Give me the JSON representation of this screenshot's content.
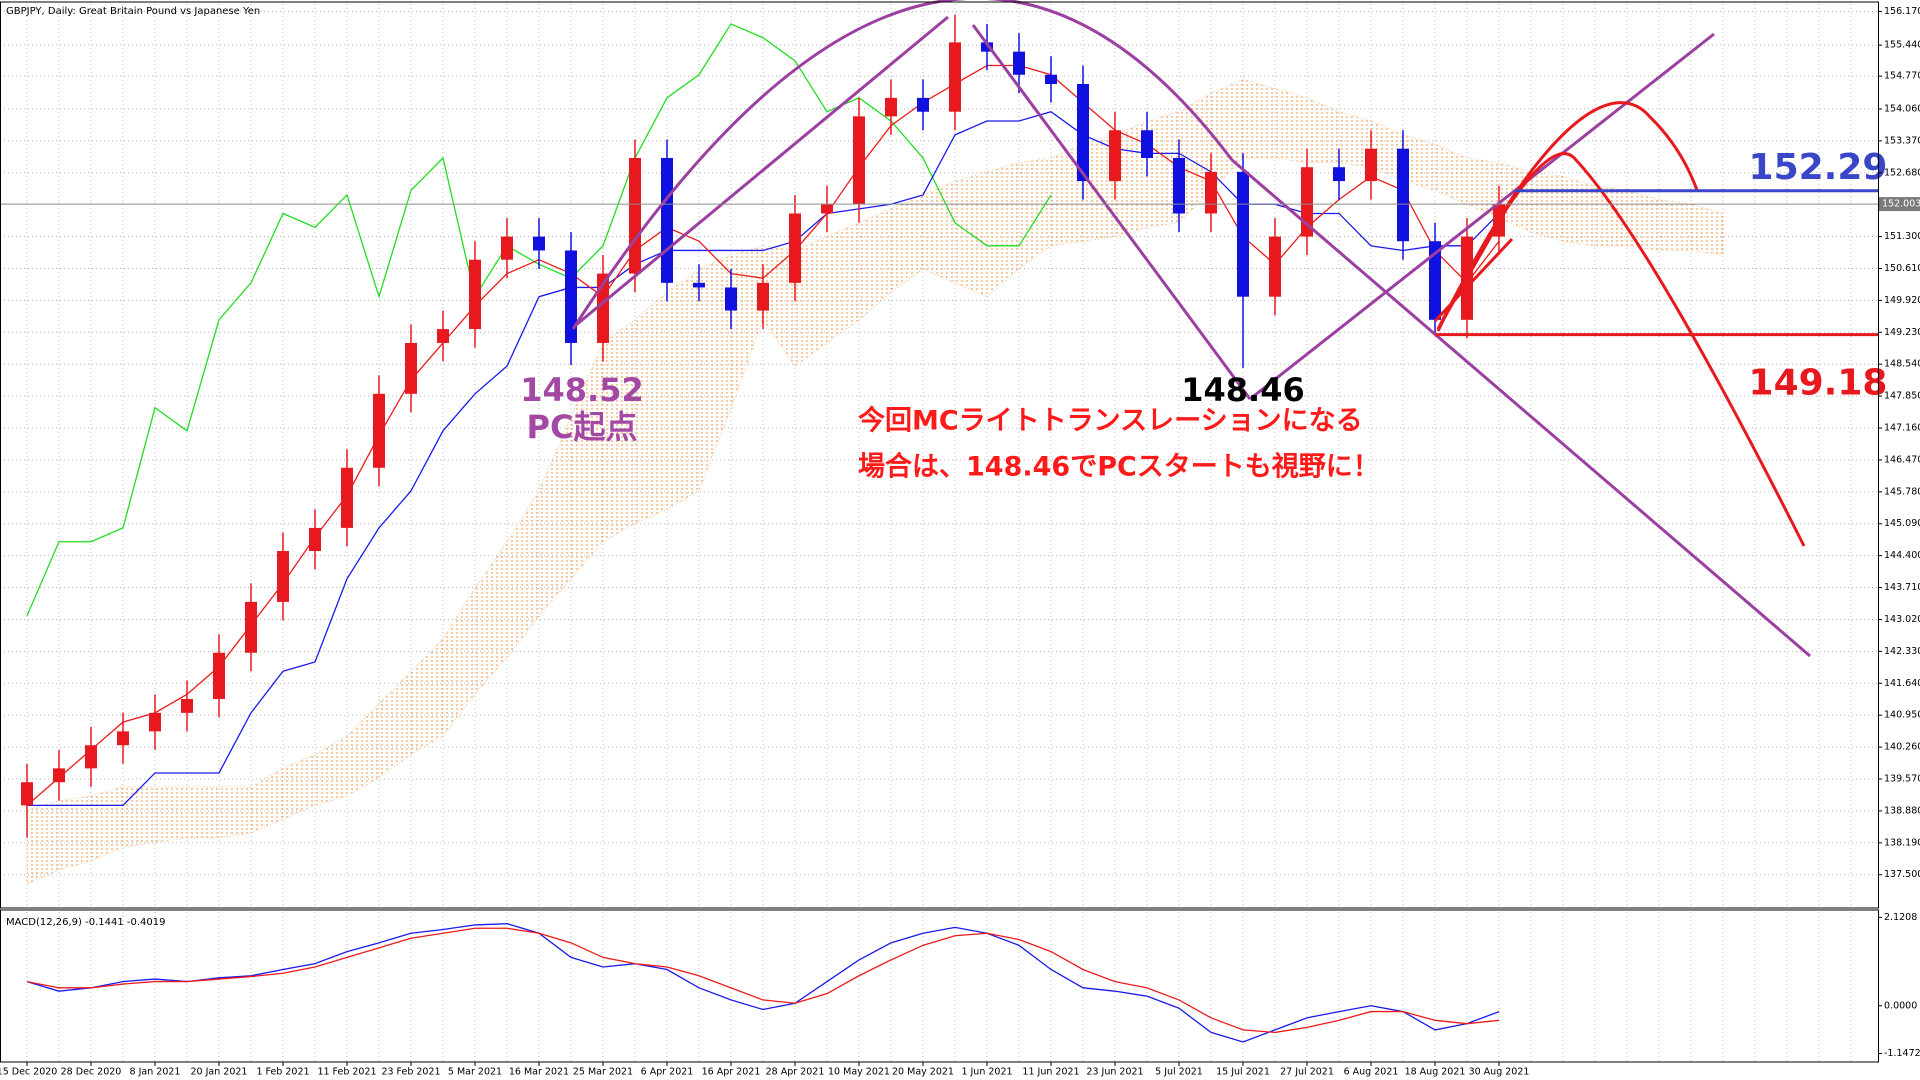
{
  "chart_data": [
    {
      "type": "candlestick",
      "title": "GBPJPY, Daily:  Great Britain Pound vs Japanese Yen",
      "categories": [
        "15 Dec 2020",
        null,
        "28 Dec 2020",
        null,
        "8 Jan 2021",
        null,
        "20 Jan 2021",
        null,
        "1 Feb 2021",
        null,
        "11 Feb 2021",
        null,
        "23 Feb 2021",
        null,
        "5 Mar 2021",
        null,
        "16 Mar 2021",
        null,
        "25 Mar 2021",
        null,
        "6 Apr 2021",
        null,
        "16 Apr 2021",
        null,
        "28 Apr 2021",
        null,
        "10 May 2021",
        null,
        "20 May 2021",
        null,
        "1 Jun 2021",
        null,
        "11 Jun 2021",
        null,
        "23 Jun 2021",
        null,
        "5 Jul 2021",
        null,
        "15 Jul 2021",
        null,
        "27 Jul 2021",
        null,
        "6 Aug 2021",
        null,
        "18 Aug 2021",
        null,
        "30 Aug 2021",
        null,
        null,
        null,
        null,
        null,
        null,
        null
      ],
      "open": [
        139.0,
        139.5,
        139.8,
        140.3,
        140.6,
        141.0,
        141.3,
        142.3,
        143.4,
        144.5,
        145.0,
        146.3,
        147.9,
        149.0,
        149.3,
        150.8,
        151.3,
        151.0,
        149.0,
        150.5,
        153.0,
        150.3,
        150.2,
        149.7,
        150.3,
        151.8,
        152.0,
        153.9,
        154.3,
        154.0,
        155.5,
        155.3,
        154.8,
        154.6,
        152.5,
        153.6,
        153.0,
        151.8,
        152.7,
        150.0,
        151.3,
        152.8,
        152.5,
        153.2,
        151.2,
        149.5,
        151.3,
        null,
        null,
        null,
        null,
        null,
        null,
        null
      ],
      "high": [
        139.9,
        140.2,
        140.7,
        141.0,
        141.4,
        141.7,
        142.7,
        143.8,
        144.9,
        145.4,
        146.7,
        148.3,
        149.4,
        149.7,
        151.2,
        151.7,
        151.7,
        151.4,
        150.9,
        153.4,
        153.4,
        150.7,
        150.6,
        150.7,
        152.2,
        152.4,
        154.3,
        154.7,
        154.7,
        156.1,
        155.9,
        155.7,
        155.2,
        155.0,
        154.0,
        154.0,
        153.4,
        153.1,
        153.1,
        151.7,
        153.2,
        153.2,
        153.6,
        153.6,
        151.6,
        151.7,
        152.4,
        null,
        null,
        null,
        null,
        null,
        null,
        null
      ],
      "low": [
        138.3,
        139.1,
        139.4,
        139.9,
        140.2,
        140.6,
        140.9,
        141.9,
        143.0,
        144.1,
        144.6,
        145.9,
        147.5,
        148.6,
        148.9,
        150.4,
        150.6,
        148.52,
        148.6,
        150.1,
        149.9,
        149.9,
        149.3,
        149.3,
        149.9,
        151.4,
        151.6,
        153.5,
        153.6,
        153.6,
        154.9,
        154.4,
        154.2,
        152.1,
        152.1,
        152.6,
        151.4,
        151.4,
        148.46,
        149.6,
        150.9,
        152.1,
        152.1,
        150.8,
        149.18,
        149.1,
        150.9,
        null,
        null,
        null,
        null,
        null,
        null,
        null
      ],
      "close": [
        139.5,
        139.8,
        140.3,
        140.6,
        141.0,
        141.3,
        142.3,
        143.4,
        144.5,
        145.0,
        146.3,
        147.9,
        149.0,
        149.3,
        150.8,
        151.3,
        151.0,
        149.0,
        150.5,
        153.0,
        150.3,
        150.2,
        149.7,
        150.3,
        151.8,
        152.0,
        153.9,
        154.3,
        154.0,
        155.5,
        155.3,
        154.8,
        154.6,
        152.5,
        153.6,
        153.0,
        151.8,
        152.7,
        150.0,
        151.3,
        152.8,
        152.5,
        153.2,
        151.2,
        149.5,
        151.3,
        152.0,
        null,
        null,
        null,
        null,
        null,
        null,
        null
      ],
      "up_color": "#e8191e",
      "down_color": "#1010e0",
      "ylim": [
        136.78,
        156.33
      ],
      "yticks": [
        {
          "value": 156.17,
          "label": "156.170"
        },
        {
          "value": 155.44,
          "label": "155.440"
        },
        {
          "value": 154.77,
          "label": "154.770"
        },
        {
          "value": 154.06,
          "label": "154.060"
        },
        {
          "value": 153.37,
          "label": "153.370"
        },
        {
          "value": 152.68,
          "label": "152.680"
        },
        {
          "value": 151.3,
          "label": "151.300"
        },
        {
          "value": 150.61,
          "label": "150.610"
        },
        {
          "value": 149.92,
          "label": "149.920"
        },
        {
          "value": 149.23,
          "label": "149.230"
        },
        {
          "value": 148.54,
          "label": "148.540"
        },
        {
          "value": 147.85,
          "label": "147.850"
        },
        {
          "value": 147.16,
          "label": "147.160"
        },
        {
          "value": 146.47,
          "label": "146.470"
        },
        {
          "value": 145.78,
          "label": "145.780"
        },
        {
          "value": 145.09,
          "label": "145.090"
        },
        {
          "value": 144.4,
          "label": "144.400"
        },
        {
          "value": 143.71,
          "label": "143.710"
        },
        {
          "value": 143.02,
          "label": "143.020"
        },
        {
          "value": 142.33,
          "label": "142.330"
        },
        {
          "value": 141.64,
          "label": "141.640"
        },
        {
          "value": 140.95,
          "label": "140.950"
        },
        {
          "value": 140.26,
          "label": "140.260"
        },
        {
          "value": 139.57,
          "label": "139.570"
        },
        {
          "value": 138.88,
          "label": "138.880"
        },
        {
          "value": 138.19,
          "label": "138.190"
        },
        {
          "value": 137.5,
          "label": "137.500"
        }
      ],
      "grid": true,
      "current_price": {
        "value": 152.003,
        "label": "152.003"
      },
      "cloud": {
        "color": "#f4a460",
        "upper": [
          138.9,
          139.1,
          139.2,
          139.4,
          139.4,
          139.4,
          139.4,
          139.4,
          139.8,
          140.1,
          140.5,
          141.2,
          141.9,
          142.6,
          143.7,
          144.7,
          145.8,
          147.4,
          149.0,
          149.5,
          150.1,
          150.6,
          150.9,
          151.1,
          151.0,
          151.3,
          151.6,
          151.9,
          152.2,
          152.5,
          152.7,
          152.9,
          153.0,
          153.3,
          153.5,
          153.8,
          154.0,
          154.4,
          154.7,
          154.5,
          154.3,
          154.0,
          153.8,
          153.5,
          153.3,
          153.0,
          152.9,
          152.7,
          152.6,
          152.4,
          152.3,
          152.1,
          152.0,
          151.8
        ],
        "lower": [
          137.3,
          137.6,
          137.8,
          138.1,
          138.2,
          138.3,
          138.3,
          138.4,
          138.7,
          139.0,
          139.2,
          139.6,
          140.1,
          140.5,
          141.4,
          142.2,
          143.1,
          143.9,
          144.7,
          145.1,
          145.4,
          145.8,
          147.6,
          149.5,
          148.5,
          149.0,
          149.5,
          150.1,
          150.6,
          150.3,
          150.0,
          150.6,
          151.1,
          151.2,
          151.3,
          151.5,
          151.6,
          152.3,
          153.0,
          153.0,
          152.9,
          152.9,
          152.8,
          152.5,
          152.3,
          152.0,
          151.7,
          151.4,
          151.2,
          151.1,
          151.1,
          151.0,
          151.0,
          150.9
        ]
      },
      "overlays": [
        {
          "color": "#22dd22",
          "values": [
            143.1,
            144.7,
            144.7,
            145.0,
            147.6,
            147.1,
            149.5,
            150.3,
            151.8,
            151.5,
            152.2,
            150.0,
            152.3,
            153.0,
            150.0,
            151.1,
            150.7,
            150.4,
            151.1,
            153.0,
            154.3,
            154.8,
            155.9,
            155.6,
            155.1,
            154.0,
            154.3,
            153.8,
            153.0,
            151.6,
            151.1,
            151.1,
            152.2,
            null,
            null,
            null,
            null,
            null,
            null,
            null,
            null,
            null,
            null,
            null,
            null,
            null,
            null,
            null,
            null,
            null,
            null,
            null,
            null,
            null
          ]
        },
        {
          "color": "#1a1aee",
          "values": [
            139.0,
            139.0,
            139.0,
            139.0,
            139.7,
            139.7,
            139.7,
            141.0,
            141.9,
            142.1,
            143.9,
            145.0,
            145.8,
            147.1,
            147.9,
            148.5,
            150.0,
            150.2,
            150.2,
            150.7,
            151.0,
            151.0,
            151.0,
            151.0,
            151.2,
            151.8,
            151.9,
            152.0,
            152.2,
            153.5,
            153.8,
            153.8,
            154.0,
            153.5,
            153.2,
            153.1,
            153.1,
            152.7,
            152.0,
            152.0,
            151.8,
            151.8,
            151.1,
            151.0,
            151.1,
            151.1,
            151.8,
            null,
            null,
            null,
            null,
            null,
            null,
            null
          ]
        },
        {
          "color": "#ee1a1a",
          "values": [
            139.0,
            139.6,
            140.2,
            140.8,
            141.0,
            141.4,
            142.0,
            142.9,
            143.8,
            144.8,
            145.7,
            147.0,
            148.2,
            149.0,
            149.8,
            150.5,
            150.8,
            150.5,
            150.0,
            151.0,
            151.5,
            151.2,
            150.5,
            150.4,
            151.0,
            151.8,
            152.8,
            153.7,
            154.2,
            154.6,
            155.0,
            155.0,
            154.8,
            154.2,
            153.6,
            153.3,
            152.8,
            152.5,
            151.3,
            150.7,
            151.5,
            152.1,
            152.6,
            152.3,
            151.0,
            150.3,
            151.2,
            null,
            null,
            null,
            null,
            null,
            null,
            null
          ]
        }
      ],
      "hlines": [
        {
          "value": 152.29,
          "color": "#3a46c8"
        },
        {
          "value": 149.18,
          "color": "#e8191e"
        }
      ],
      "annotations": [
        {
          "text": "148.52",
          "color": "#a349a4"
        },
        {
          "text": "PC起点",
          "color": "#a349a4"
        },
        {
          "text": "148.46",
          "color": "#000000"
        },
        {
          "text": "今回MCライトトランスレーションになる",
          "color": "#ff1a1a"
        },
        {
          "text": "場合は、148.46でPCスタートも視野に！",
          "color": "#ff1a1a"
        }
      ]
    },
    {
      "type": "line",
      "title": "MACD(12,26,9) -0.1441 -0.4019",
      "series": [
        {
          "color": "#1a1aee",
          "values": [
            0.58,
            0.35,
            0.43,
            0.58,
            0.64,
            0.58,
            0.67,
            0.72,
            0.87,
            1.01,
            1.3,
            1.51,
            1.74,
            1.83,
            1.94,
            1.97,
            1.74,
            1.16,
            0.93,
            1.01,
            0.87,
            0.43,
            0.14,
            -0.09,
            0.06,
            0.58,
            1.1,
            1.51,
            1.74,
            1.88,
            1.74,
            1.45,
            0.87,
            0.43,
            0.35,
            0.23,
            -0.06,
            -0.64,
            -0.87,
            -0.58,
            -0.29,
            -0.14,
            0,
            -0.14,
            -0.58,
            -0.43,
            -0.14,
            null,
            null,
            null,
            null,
            null,
            null,
            null
          ]
        },
        {
          "color": "#ee1a1a",
          "values": [
            0.58,
            0.43,
            0.43,
            0.52,
            0.58,
            0.58,
            0.64,
            0.7,
            0.78,
            0.93,
            1.16,
            1.39,
            1.62,
            1.74,
            1.86,
            1.86,
            1.74,
            1.51,
            1.16,
            1.01,
            0.93,
            0.72,
            0.43,
            0.14,
            0.06,
            0.29,
            0.72,
            1.1,
            1.45,
            1.68,
            1.74,
            1.59,
            1.3,
            0.87,
            0.58,
            0.43,
            0.14,
            -0.29,
            -0.58,
            -0.64,
            -0.52,
            -0.35,
            -0.14,
            -0.14,
            -0.35,
            -0.43,
            -0.35,
            null,
            null,
            null,
            null,
            null,
            null,
            null
          ]
        }
      ],
      "ylim": [
        -1.35,
        2.25
      ],
      "yticks": [
        2.1208,
        {
          "value": 0,
          "label": "0.0000"
        },
        -1.1472
      ]
    }
  ]
}
